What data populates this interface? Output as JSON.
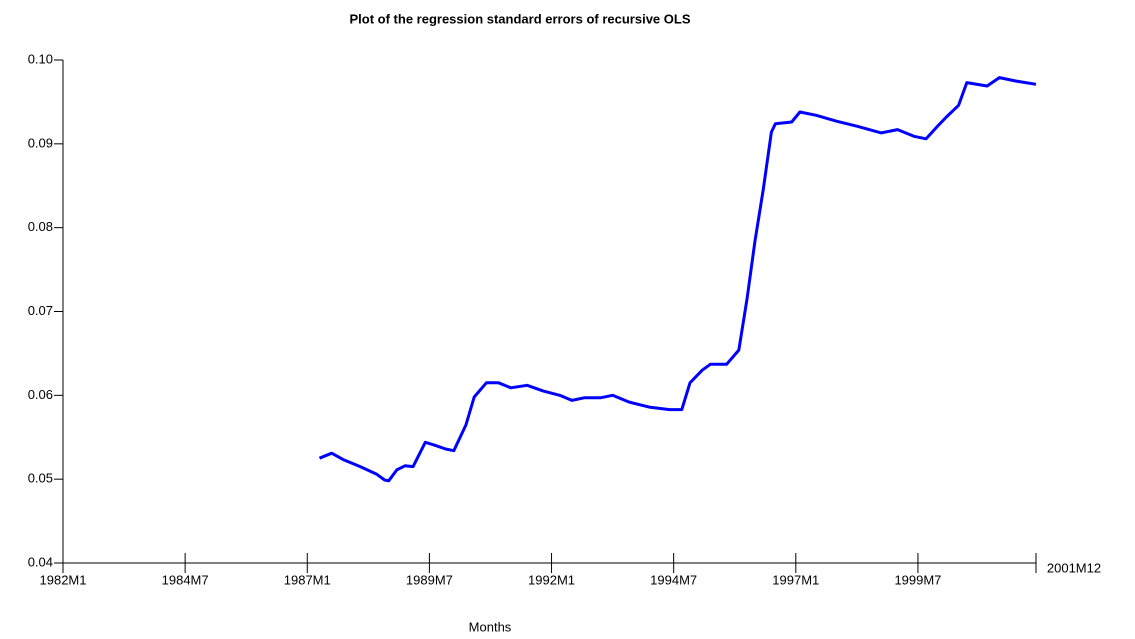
{
  "chart_data": {
    "type": "line",
    "title": "Plot of the regression standard errors of recursive OLS",
    "x_label": "Months",
    "xlim": [
      "1982M1",
      "2001M12"
    ],
    "xticks": [
      "1982M1",
      "1984M7",
      "1987M1",
      "1989M7",
      "1992M1",
      "1994M7",
      "1997M1",
      "1999M7",
      "2001M12"
    ],
    "ylim": [
      0.04,
      0.1
    ],
    "yticks": [
      0.04,
      0.05,
      0.06,
      0.07,
      0.08,
      0.09,
      {
        "value": 0.1,
        "label": "0.10"
      }
    ],
    "x": [
      "1987M4",
      "1987M7",
      "1987M10",
      "1988M2",
      "1988M6",
      "1988M8",
      "1988M9",
      "1988M11",
      "1989M1",
      "1989M3",
      "1989M6",
      "1989M8",
      "1989M11",
      "1990M1",
      "1990M4",
      "1990M6",
      "1990M9",
      "1990M12",
      "1991M3",
      "1991M7",
      "1991M11",
      "1992M3",
      "1992M6",
      "1992M9",
      "1993M1",
      "1993M4",
      "1993M8",
      "1994M1",
      "1994M6",
      "1994M9",
      "1994M11",
      "1995M2",
      "1995M4",
      "1995M8",
      "1995M11",
      "1996M1",
      "1996M3",
      "1996M5",
      "1996M7",
      "1996M8",
      "1996M12",
      "1997M2",
      "1997M6",
      "1997M11",
      "1998M4",
      "1998M10",
      "1999M2",
      "1999M6",
      "1999M9",
      "1999M12",
      "2000M2",
      "2000M5",
      "2000M7",
      "2000M12",
      "2001M3",
      "2001M7",
      "2001M12"
    ],
    "series": [
      {
        "color": "#0000ff",
        "values": [
          0.0525,
          0.0531,
          0.0523,
          0.0515,
          0.0506,
          0.0499,
          0.0498,
          0.0511,
          0.0516,
          0.0515,
          0.0544,
          0.0541,
          0.0536,
          0.0534,
          0.0565,
          0.0598,
          0.0615,
          0.0615,
          0.0609,
          0.0612,
          0.0605,
          0.06,
          0.0594,
          0.0597,
          0.0597,
          0.06,
          0.0592,
          0.0586,
          0.0583,
          0.0583,
          0.0615,
          0.063,
          0.0637,
          0.0637,
          0.0654,
          0.0714,
          0.0785,
          0.0845,
          0.0914,
          0.0924,
          0.0926,
          0.0938,
          0.0934,
          0.0927,
          0.0921,
          0.0913,
          0.0917,
          0.0909,
          0.0906,
          0.0922,
          0.0932,
          0.0946,
          0.0973,
          0.0969,
          0.0979,
          0.0975,
          0.0971
        ]
      }
    ]
  }
}
